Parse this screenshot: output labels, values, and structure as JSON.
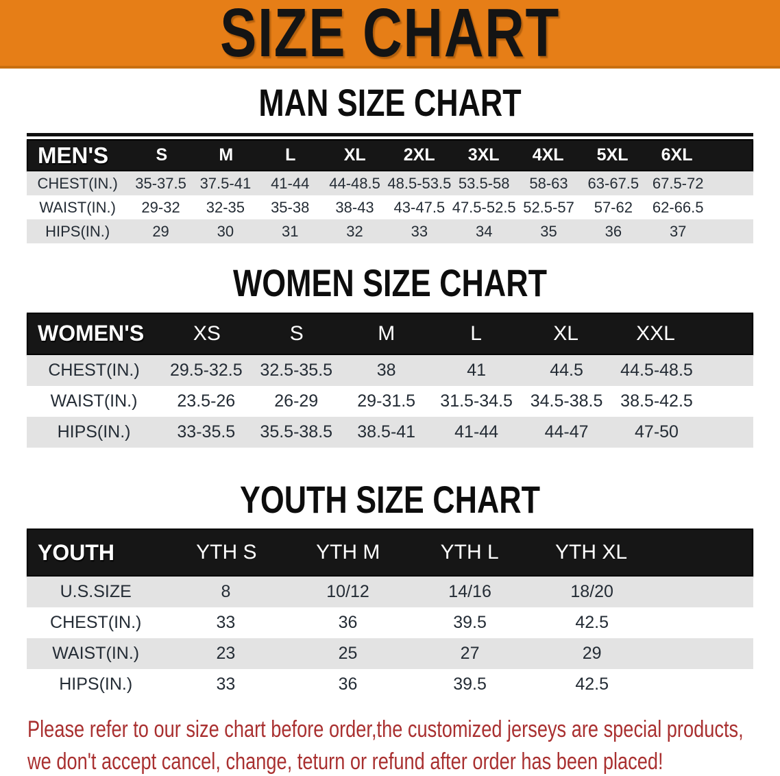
{
  "banner": {
    "title": "SIZE CHART",
    "bg_color": "#E67E17",
    "text_color": "#141414"
  },
  "sections": [
    {
      "heading": "MAN SIZE CHART",
      "table": {
        "header_label": "MEN'S",
        "columns": [
          "S",
          "M",
          "L",
          "XL",
          "2XL",
          "3XL",
          "4XL",
          "5XL",
          "6XL"
        ],
        "rows": [
          {
            "label": "CHEST(IN.)",
            "values": [
              "35-37.5",
              "37.5-41",
              "41-44",
              "44-48.5",
              "48.5-53.5",
              "53.5-58",
              "58-63",
              "63-67.5",
              "67.5-72"
            ]
          },
          {
            "label": "WAIST(IN.)",
            "values": [
              "29-32",
              "32-35",
              "35-38",
              "38-43",
              "43-47.5",
              "47.5-52.5",
              "52.5-57",
              "57-62",
              "62-66.5"
            ]
          },
          {
            "label": "HIPS(IN.)",
            "values": [
              "29",
              "30",
              "31",
              "32",
              "33",
              "34",
              "35",
              "36",
              "37"
            ]
          }
        ]
      }
    },
    {
      "heading": "WOMEN SIZE CHART",
      "table": {
        "header_label": "WOMEN'S",
        "columns": [
          "XS",
          "S",
          "M",
          "L",
          "XL",
          "XXL"
        ],
        "rows": [
          {
            "label": "CHEST(IN.)",
            "values": [
              "29.5-32.5",
              "32.5-35.5",
              "38",
              "41",
              "44.5",
              "44.5-48.5"
            ]
          },
          {
            "label": "WAIST(IN.)",
            "values": [
              "23.5-26",
              "26-29",
              "29-31.5",
              "31.5-34.5",
              "34.5-38.5",
              "38.5-42.5"
            ]
          },
          {
            "label": "HIPS(IN.)",
            "values": [
              "33-35.5",
              "35.5-38.5",
              "38.5-41",
              "41-44",
              "44-47",
              "47-50"
            ]
          }
        ]
      }
    },
    {
      "heading": "YOUTH SIZE CHART",
      "table": {
        "header_label": "YOUTH",
        "columns": [
          "YTH S",
          "YTH M",
          "YTH L",
          "YTH XL"
        ],
        "rows": [
          {
            "label": "U.S.SIZE",
            "values": [
              "8",
              "10/12",
              "14/16",
              "18/20"
            ]
          },
          {
            "label": "CHEST(IN.)",
            "values": [
              "33",
              "36",
              "39.5",
              "42.5"
            ]
          },
          {
            "label": "WAIST(IN.)",
            "values": [
              "23",
              "25",
              "27",
              "29"
            ]
          },
          {
            "label": "HIPS(IN.)",
            "values": [
              "33",
              "36",
              "39.5",
              "42.5"
            ]
          }
        ]
      }
    }
  ],
  "styles": {
    "header_band_bg": "#161616",
    "row_alt_bg": "#E3E3E3",
    "value_text_color": "#242C35",
    "disclaimer_color": "#A93030"
  },
  "disclaimer": {
    "lines": [
      "Please refer to our size chart before order,the customized jerseys are special products,",
      "we don't accept cancel, change, teturn or refund after order has been placed!"
    ]
  }
}
